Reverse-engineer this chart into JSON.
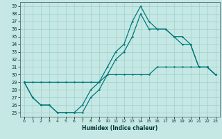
{
  "xlabel": "Humidex (Indice chaleur)",
  "bg_color": "#c5e8e5",
  "grid_color": "#9fcfcc",
  "line_color": "#007878",
  "xlim": [
    -0.5,
    23.5
  ],
  "ylim": [
    24.5,
    39.5
  ],
  "xticks": [
    0,
    1,
    2,
    3,
    4,
    5,
    6,
    7,
    8,
    9,
    10,
    11,
    12,
    13,
    14,
    15,
    16,
    17,
    18,
    19,
    20,
    21,
    22,
    23
  ],
  "yticks": [
    25,
    26,
    27,
    28,
    29,
    30,
    31,
    32,
    33,
    34,
    35,
    36,
    37,
    38,
    39
  ],
  "curve_max": {
    "x": [
      0,
      1,
      2,
      3,
      4,
      5,
      6,
      7,
      8,
      9,
      10,
      11,
      12,
      13,
      14,
      15,
      16,
      17,
      18,
      19,
      20,
      21,
      22,
      23
    ],
    "y": [
      29,
      27,
      26,
      26,
      25,
      25,
      25,
      26,
      28,
      29,
      31,
      33,
      34,
      37,
      39,
      37,
      36,
      36,
      35,
      35,
      34,
      31,
      31,
      30
    ]
  },
  "curve_linear": {
    "x": [
      0,
      1,
      2,
      3,
      4,
      5,
      6,
      7,
      8,
      9,
      10,
      11,
      12,
      13,
      14,
      15,
      16,
      17,
      18,
      19,
      20,
      21,
      22,
      23
    ],
    "y": [
      29,
      29,
      29,
      29,
      29,
      29,
      29,
      29,
      29,
      29,
      30,
      30,
      30,
      30,
      30,
      30,
      31,
      31,
      31,
      31,
      31,
      31,
      31,
      30
    ]
  },
  "curve_mid": {
    "x": [
      0,
      1,
      2,
      3,
      4,
      5,
      6,
      7,
      8,
      9,
      10,
      11,
      12,
      13,
      14,
      15,
      16,
      17,
      18,
      19,
      20,
      21,
      22,
      23
    ],
    "y": [
      29,
      27,
      26,
      26,
      25,
      25,
      25,
      25,
      27,
      28,
      30,
      32,
      33,
      35,
      38,
      36,
      36,
      36,
      35,
      34,
      34,
      31,
      31,
      30
    ]
  }
}
